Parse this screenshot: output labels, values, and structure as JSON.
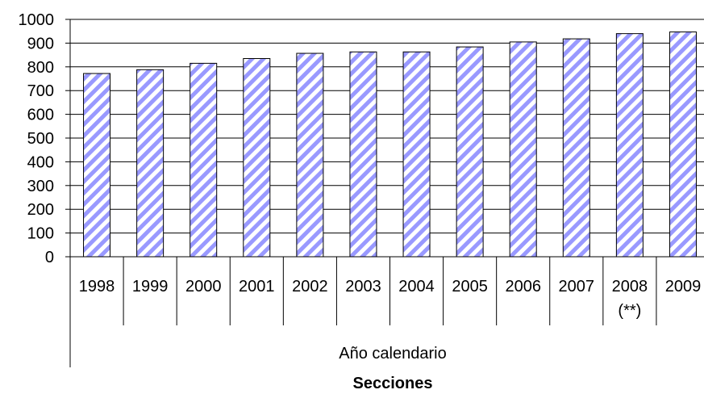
{
  "chart_data": {
    "type": "bar",
    "categories": [
      "1998",
      "1999",
      "2000",
      "2001",
      "2002",
      "2003",
      "2004",
      "2005",
      "2006",
      "2007",
      "2008",
      "2009"
    ],
    "category_sublabels": [
      "",
      "",
      "",
      "",
      "",
      "",
      "",
      "",
      "",
      "",
      "(**)",
      ""
    ],
    "values": [
      772,
      788,
      815,
      835,
      857,
      863,
      863,
      884,
      905,
      918,
      940,
      947
    ],
    "group_label": "Año calendario",
    "xlabel": "Secciones",
    "ylabel": "",
    "title": "",
    "ylim": [
      0,
      1000
    ],
    "yticks": [
      0,
      100,
      200,
      300,
      400,
      500,
      600,
      700,
      800,
      900,
      1000
    ],
    "grid": true,
    "legend": "none",
    "bar_fill": "#9999ff",
    "bar_pattern": "diagonal-stripes",
    "gridline_color": "#000000"
  }
}
